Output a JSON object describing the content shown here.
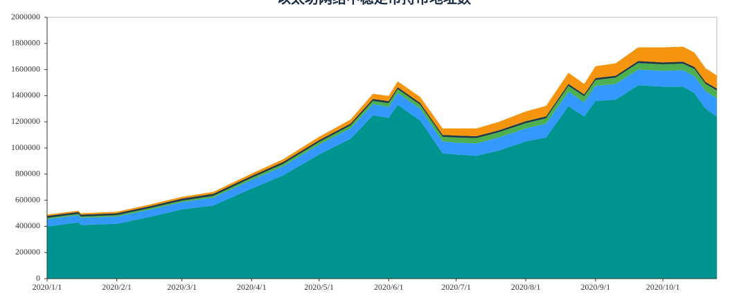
{
  "chart_data": {
    "type": "stacked-area",
    "title": "以太坊网络中稳定币持币地址数",
    "x": [
      "2020/1/1",
      "2020/1/15",
      "2020/1/16",
      "2020/2/1",
      "2020/2/15",
      "2020/3/1",
      "2020/3/15",
      "2020/4/1",
      "2020/4/15",
      "2020/5/1",
      "2020/5/15",
      "2020/5/25",
      "2020/6/1",
      "2020/6/5",
      "2020/6/15",
      "2020/6/25",
      "2020/7/1",
      "2020/7/10",
      "2020/7/20",
      "2020/8/1",
      "2020/8/10",
      "2020/8/20",
      "2020/8/27",
      "2020/9/1",
      "2020/9/10",
      "2020/9/20",
      "2020/10/1",
      "2020/10/10",
      "2020/10/15",
      "2020/10/20",
      "2020/10/25"
    ],
    "series": [
      {
        "color": "#009490",
        "values": [
          400000,
          430000,
          410000,
          420000,
          470000,
          530000,
          560000,
          690000,
          790000,
          950000,
          1070000,
          1250000,
          1230000,
          1330000,
          1210000,
          960000,
          950000,
          940000,
          980000,
          1050000,
          1080000,
          1320000,
          1240000,
          1360000,
          1370000,
          1480000,
          1470000,
          1470000,
          1420000,
          1300000,
          1240000
        ]
      },
      {
        "color": "#3399ff",
        "values": [
          55000,
          55000,
          55000,
          55000,
          55000,
          55000,
          60000,
          65000,
          70000,
          75000,
          80000,
          85000,
          85000,
          90000,
          90000,
          90000,
          90000,
          95000,
          100000,
          100000,
          105000,
          110000,
          110000,
          115000,
          120000,
          120000,
          120000,
          125000,
          130000,
          135000,
          140000
        ]
      },
      {
        "color": "#4cb050",
        "values": [
          10000,
          10000,
          10000,
          10000,
          12000,
          12000,
          14000,
          16000,
          18000,
          20000,
          22000,
          25000,
          28000,
          30000,
          30000,
          35000,
          40000,
          40000,
          40000,
          40000,
          42000,
          45000,
          45000,
          45000,
          48000,
          50000,
          50000,
          50000,
          55000,
          55000,
          60000
        ]
      },
      {
        "color": "#1f3a44",
        "values": [
          15000,
          15000,
          15000,
          15000,
          15000,
          15000,
          15000,
          15000,
          15000,
          15000,
          15000,
          15000,
          15000,
          15000,
          15000,
          15000,
          15000,
          15000,
          15000,
          15000,
          15000,
          15000,
          15000,
          15000,
          15000,
          15000,
          15000,
          15000,
          15000,
          15000,
          15000
        ]
      },
      {
        "color": "#f5950f",
        "values": [
          10000,
          10000,
          10000,
          12000,
          12000,
          14000,
          15000,
          18000,
          20000,
          25000,
          30000,
          40000,
          40000,
          45000,
          45000,
          50000,
          55000,
          60000,
          65000,
          75000,
          80000,
          85000,
          80000,
          90000,
          95000,
          105000,
          115000,
          115000,
          110000,
          105000,
          100000
        ]
      }
    ],
    "xlim": [
      "2020/1/1",
      "2020/10/25"
    ],
    "xticks": [
      "2020/1/1",
      "2020/2/1",
      "2020/3/1",
      "2020/4/1",
      "2020/5/1",
      "2020/6/1",
      "2020/7/1",
      "2020/8/1",
      "2020/9/1",
      "2020/10/1"
    ],
    "ylim": [
      0,
      2000000
    ],
    "yticks": [
      0,
      200000,
      400000,
      600000,
      800000,
      1000000,
      1200000,
      1400000,
      1600000,
      1800000,
      2000000
    ]
  }
}
